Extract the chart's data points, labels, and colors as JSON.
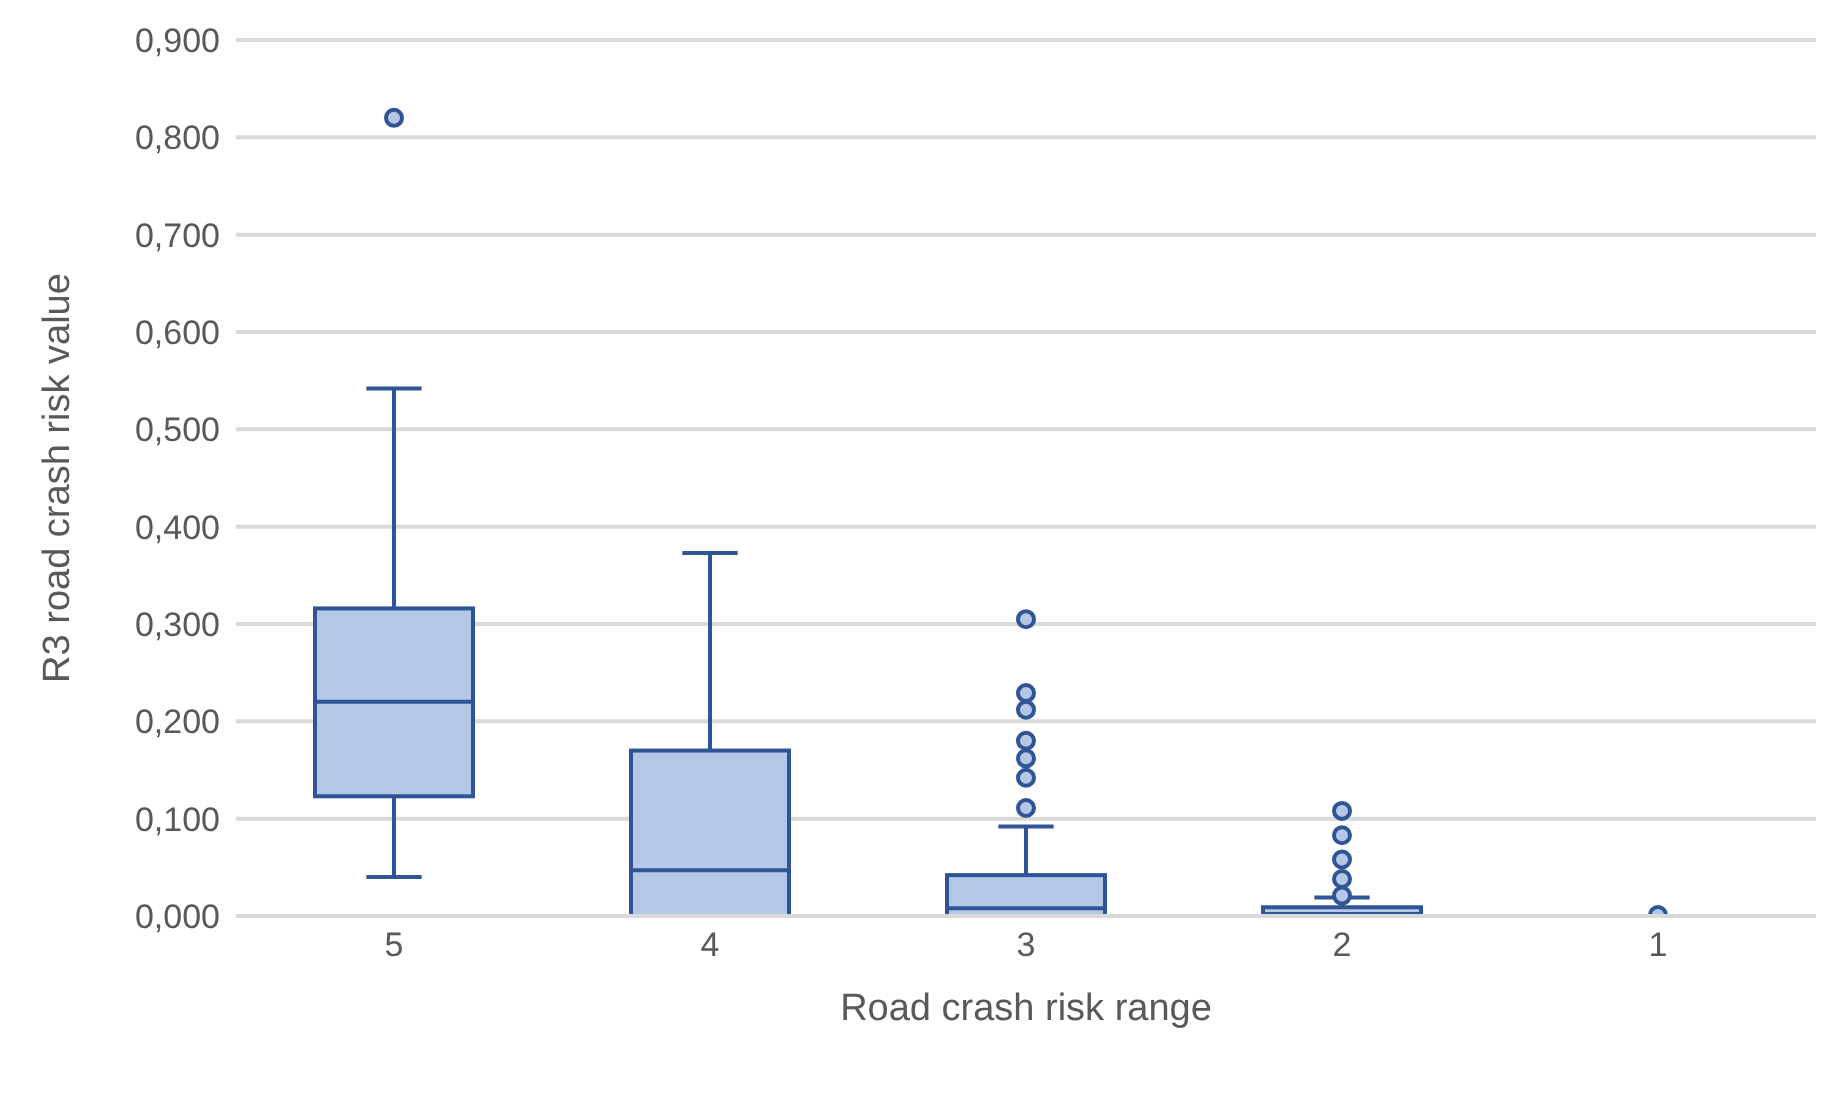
{
  "chart_data": {
    "type": "box",
    "xlabel": "Road crash risk range",
    "ylabel": "R3 road crash risk value",
    "categories": [
      "5",
      "4",
      "3",
      "2",
      "1"
    ],
    "color": "#b4c7e7",
    "boxes": [
      {
        "low": 0.04,
        "q1": 0.123,
        "median": 0.22,
        "q3": 0.316,
        "high": 0.542,
        "outliers": [
          0.82
        ]
      },
      {
        "low": 0,
        "q1": 0,
        "median": 0.047,
        "q3": 0.17,
        "high": 0.373
      },
      {
        "low": 0,
        "q1": 0,
        "median": 0.008,
        "q3": 0.042,
        "high": 0.092,
        "outliers": [
          0.111,
          0.142,
          0.162,
          0.18,
          0.212,
          0.229,
          0.305
        ]
      },
      {
        "low": 0,
        "q1": 0,
        "median": 0.002,
        "q3": 0.009,
        "high": 0.019,
        "outliers": [
          0.021,
          0.038,
          0.058,
          0.083,
          0.108
        ]
      },
      {
        "low": 0,
        "q1": 0,
        "median": 0,
        "q3": 0,
        "high": 0,
        "outliers": [
          0.001
        ]
      }
    ],
    "ylim": [
      0,
      0.9
    ],
    "yticks": [
      {
        "value": 0,
        "label": "0,000"
      },
      {
        "value": 0.1,
        "label": "0,100"
      },
      {
        "value": 0.2,
        "label": "0,200"
      },
      {
        "value": 0.3,
        "label": "0,300"
      },
      {
        "value": 0.4,
        "label": "0,400"
      },
      {
        "value": 0.5,
        "label": "0,500"
      },
      {
        "value": 0.6,
        "label": "0,600"
      },
      {
        "value": 0.7,
        "label": "0,700"
      },
      {
        "value": 0.8,
        "label": "0,800"
      },
      {
        "value": 0.9,
        "label": "0,900"
      }
    ],
    "grid": "y",
    "legend": false
  }
}
